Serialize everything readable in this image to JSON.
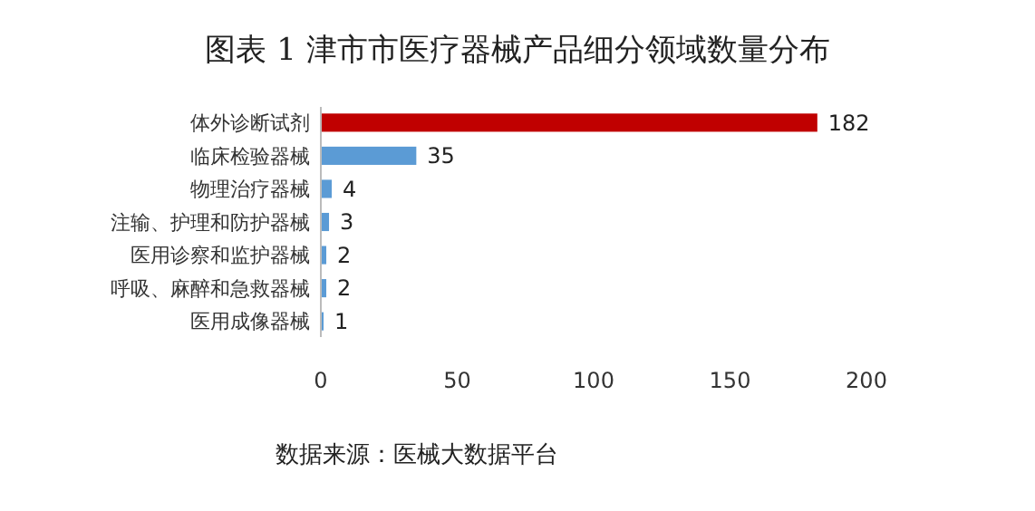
{
  "chart_data": {
    "type": "bar",
    "orientation": "horizontal",
    "title": "图表 1 津市市医疗器械产品细分领域数量分布",
    "categories": [
      "体外诊断试剂",
      "临床检验器械",
      "物理治疗器械",
      "注输、护理和防护器械",
      "医用诊察和监护器械",
      "呼吸、麻醉和急救器械",
      "医用成像器械"
    ],
    "values": [
      182,
      35,
      4,
      3,
      2,
      2,
      1
    ],
    "colors": [
      "#c00000",
      "#5b9bd5",
      "#5b9bd5",
      "#5b9bd5",
      "#5b9bd5",
      "#5b9bd5",
      "#5b9bd5"
    ],
    "xlim": [
      0,
      200
    ],
    "xticks": [
      0,
      50,
      100,
      150,
      200
    ],
    "data_labels": true,
    "annotations": [
      "数据来源：医械大数据平台"
    ]
  }
}
